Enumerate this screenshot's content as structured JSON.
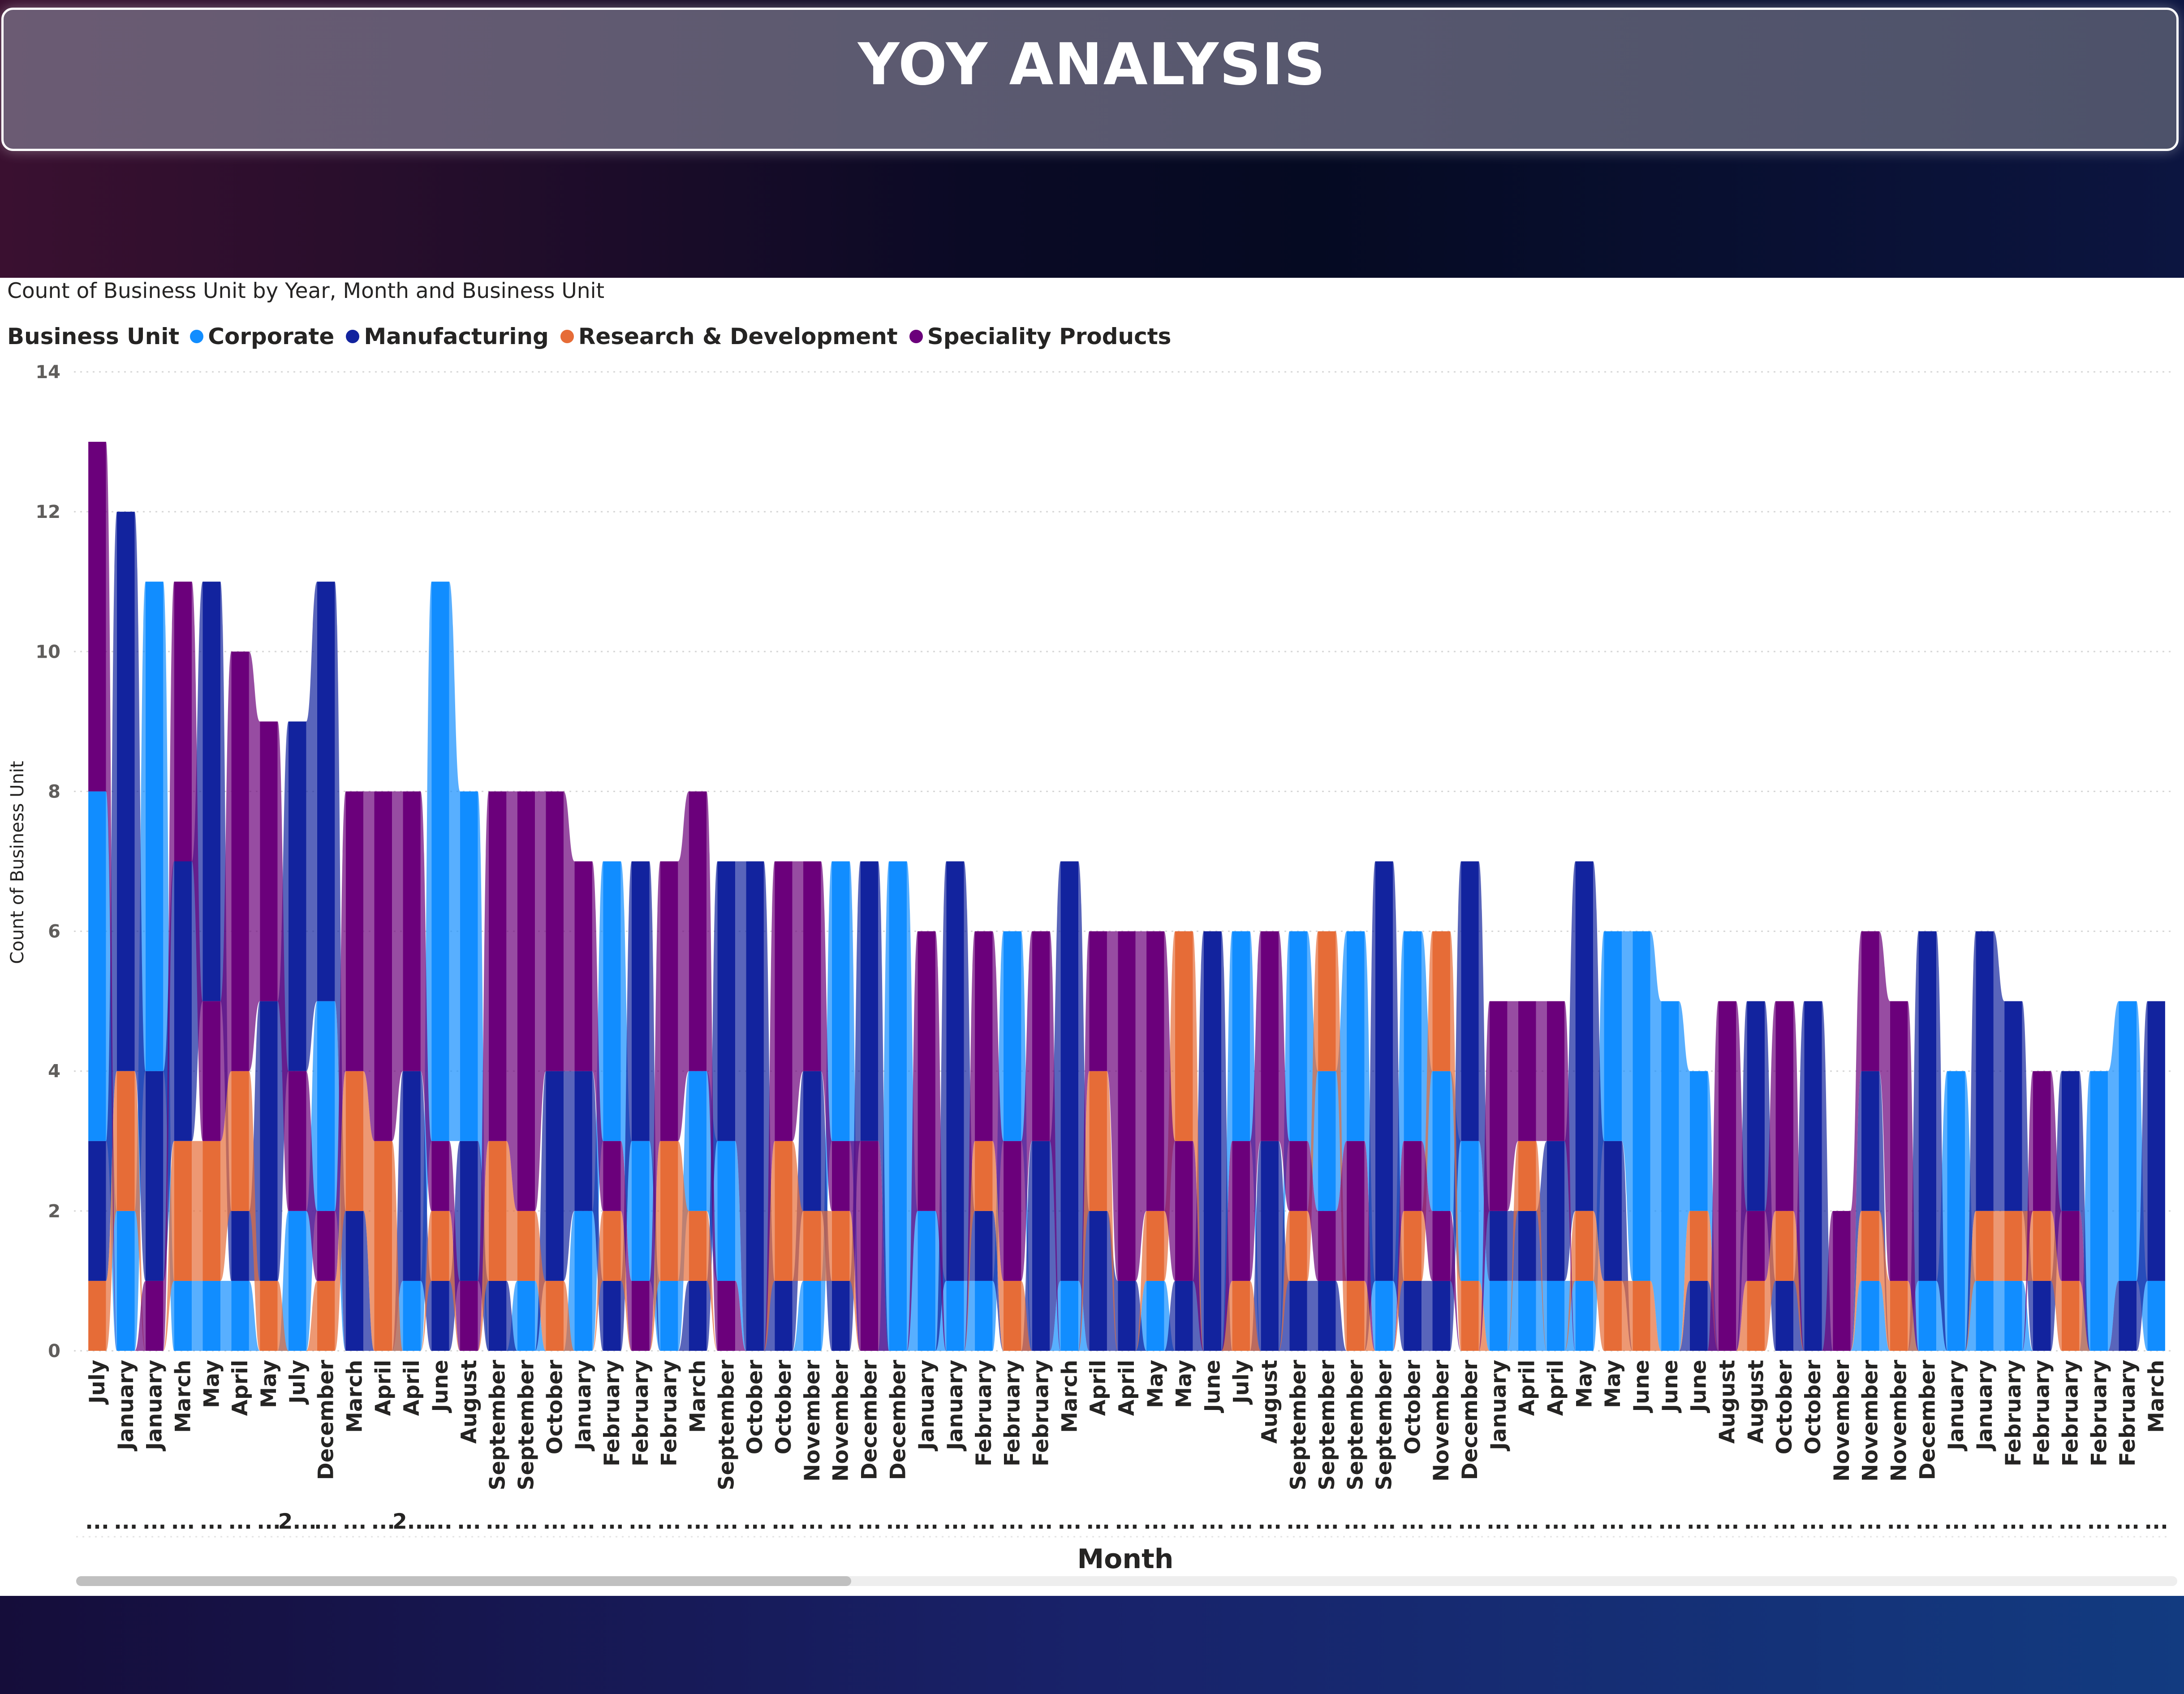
{
  "page": {
    "title": "YOY ANALYSIS"
  },
  "legend": {
    "title": "Business Unit",
    "items": [
      {
        "label": "Corporate",
        "color": "#118DFF"
      },
      {
        "label": "Manufacturing",
        "color": "#12239E"
      },
      {
        "label": "Research & Development",
        "color": "#E66C37"
      },
      {
        "label": "Speciality Products",
        "color": "#6B007B"
      }
    ]
  },
  "chart_data": {
    "type": "area",
    "title": "Count of Business Unit by Year, Month and Business Unit",
    "xlabel": "Month",
    "ylabel": "Count of Business Unit",
    "ylim": [
      0,
      14
    ],
    "yticks": [
      0,
      2,
      4,
      6,
      8,
      10,
      12,
      14
    ],
    "grid": true,
    "legend_position": "top-left",
    "stacked": true,
    "year_labels": [
      "...",
      "...",
      "...",
      "...",
      "...",
      "...",
      "...",
      "2...",
      "...",
      "...",
      "...",
      "2...",
      "...",
      "...",
      "...",
      "...",
      "...",
      "...",
      "...",
      "...",
      "...",
      "...",
      "...",
      "...",
      "...",
      "...",
      "...",
      "...",
      "...",
      "...",
      "...",
      "...",
      "...",
      "...",
      "...",
      "...",
      "...",
      "...",
      "...",
      "...",
      "...",
      "...",
      "...",
      "...",
      "...",
      "...",
      "...",
      "...",
      "...",
      "...",
      "...",
      "...",
      "...",
      "...",
      "...",
      "...",
      "...",
      "...",
      "...",
      "...",
      "...",
      "...",
      "...",
      "...",
      "...",
      "...",
      "...",
      "...",
      "...",
      "...",
      "...",
      "...",
      "..."
    ],
    "categories": [
      "July",
      "January",
      "January",
      "March",
      "May",
      "April",
      "May",
      "July",
      "December",
      "March",
      "April",
      "April",
      "June",
      "August",
      "September",
      "September",
      "October",
      "January",
      "February",
      "February",
      "February",
      "March",
      "September",
      "October",
      "October",
      "November",
      "November",
      "December",
      "December",
      "January",
      "January",
      "February",
      "February",
      "February",
      "March",
      "April",
      "April",
      "May",
      "May",
      "June",
      "July",
      "August",
      "September",
      "September",
      "September",
      "September",
      "October",
      "November",
      "December",
      "January",
      "April",
      "April",
      "May",
      "May",
      "June",
      "June",
      "June",
      "August",
      "August",
      "October",
      "October",
      "November",
      "November",
      "November",
      "December",
      "January",
      "January",
      "February",
      "February",
      "February",
      "February",
      "February",
      "March"
    ],
    "series": [
      {
        "name": "Corporate",
        "values": [
          5,
          2,
          7,
          1,
          1,
          1,
          0,
          2,
          3,
          0,
          0,
          1,
          8,
          5,
          0,
          1,
          0,
          2,
          4,
          2,
          1,
          2,
          2,
          0,
          0,
          1,
          4,
          0,
          7,
          2,
          1,
          1,
          3,
          0,
          1,
          0,
          0,
          1,
          0,
          0,
          3,
          0,
          3,
          2,
          3,
          1,
          3,
          2,
          2,
          1,
          1,
          1,
          1,
          3,
          5,
          5,
          2,
          0,
          0,
          0,
          0,
          0,
          1,
          0,
          1,
          4,
          1,
          1,
          0,
          0,
          4,
          4,
          1
        ]
      },
      {
        "name": "Manufacturing",
        "values": [
          2,
          8,
          3,
          4,
          6,
          1,
          4,
          5,
          6,
          2,
          0,
          3,
          1,
          2,
          1,
          0,
          3,
          2,
          1,
          4,
          0,
          1,
          4,
          7,
          1,
          2,
          1,
          4,
          0,
          0,
          6,
          1,
          0,
          3,
          6,
          2,
          1,
          0,
          1,
          6,
          0,
          3,
          1,
          1,
          0,
          6,
          1,
          1,
          4,
          1,
          1,
          2,
          5,
          2,
          0,
          0,
          1,
          0,
          3,
          1,
          5,
          0,
          2,
          0,
          5,
          0,
          4,
          3,
          1,
          2,
          0,
          1,
          4
        ]
      },
      {
        "name": "Research & Development",
        "values": [
          1,
          2,
          0,
          2,
          2,
          2,
          1,
          0,
          1,
          2,
          3,
          0,
          1,
          0,
          2,
          1,
          1,
          0,
          1,
          0,
          2,
          1,
          0,
          0,
          2,
          1,
          1,
          0,
          0,
          0,
          0,
          1,
          1,
          0,
          0,
          2,
          0,
          1,
          3,
          0,
          1,
          0,
          1,
          2,
          1,
          0,
          1,
          2,
          1,
          0,
          1,
          0,
          1,
          1,
          1,
          0,
          1,
          0,
          1,
          1,
          0,
          0,
          1,
          1,
          0,
          0,
          1,
          1,
          1,
          1,
          0,
          0,
          0
        ]
      },
      {
        "name": "Speciality Products",
        "values": [
          5,
          0,
          1,
          4,
          2,
          6,
          4,
          2,
          1,
          4,
          5,
          4,
          1,
          1,
          5,
          6,
          4,
          3,
          1,
          1,
          4,
          4,
          1,
          0,
          4,
          3,
          1,
          3,
          0,
          4,
          0,
          3,
          2,
          3,
          0,
          2,
          5,
          4,
          2,
          0,
          2,
          3,
          1,
          1,
          2,
          0,
          1,
          1,
          0,
          3,
          2,
          2,
          0,
          0,
          0,
          0,
          0,
          5,
          1,
          3,
          0,
          2,
          2,
          4,
          0,
          0,
          0,
          0,
          2,
          1,
          0,
          0,
          0
        ]
      }
    ]
  }
}
